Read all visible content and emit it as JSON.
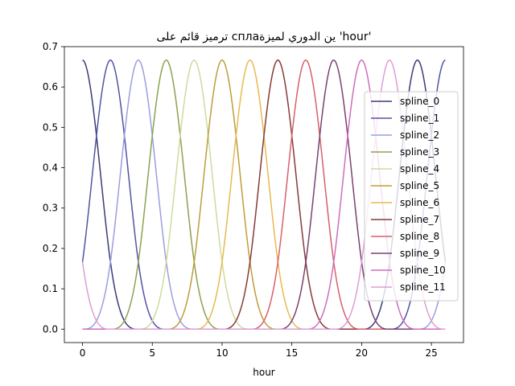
{
  "chart_data": {
    "type": "line",
    "title": "ترميز قائم على сплаين الدوري لميزة 'hour'",
    "xlabel": "hour",
    "ylabel": "",
    "xlim": [
      -1.3,
      27.3
    ],
    "ylim": [
      -0.0333,
      0.7
    ],
    "x_ticks": [
      0,
      5,
      10,
      15,
      20,
      25
    ],
    "y_ticks": [
      0.0,
      0.1,
      0.2,
      0.3,
      0.4,
      0.5,
      0.6,
      0.7
    ],
    "y_tick_labels": [
      "0.0",
      "0.1",
      "0.2",
      "0.3",
      "0.4",
      "0.5",
      "0.6",
      "0.7"
    ],
    "grid": false,
    "legend_position": "right",
    "period": 24,
    "x_range": [
      0,
      26
    ],
    "series": [
      {
        "name": "spline_0",
        "peak_x": 0,
        "color": "#393b79"
      },
      {
        "name": "spline_1",
        "peak_x": 2,
        "color": "#5254a3"
      },
      {
        "name": "spline_2",
        "peak_x": 4,
        "color": "#9c9ede"
      },
      {
        "name": "spline_3",
        "peak_x": 6,
        "color": "#8ca252"
      },
      {
        "name": "spline_4",
        "peak_x": 8,
        "color": "#cedb9c"
      },
      {
        "name": "spline_5",
        "peak_x": 10,
        "color": "#bd9e39"
      },
      {
        "name": "spline_6",
        "peak_x": 12,
        "color": "#e7ba52"
      },
      {
        "name": "spline_7",
        "peak_x": 14,
        "color": "#843c39"
      },
      {
        "name": "spline_8",
        "peak_x": 16,
        "color": "#d6616b"
      },
      {
        "name": "spline_9",
        "peak_x": 18,
        "color": "#7b4173"
      },
      {
        "name": "spline_10",
        "peak_x": 20,
        "color": "#ce6dbd"
      },
      {
        "name": "spline_11",
        "peak_x": 22,
        "color": "#de9ed6"
      }
    ],
    "series_peak_value": 0.6667
  }
}
